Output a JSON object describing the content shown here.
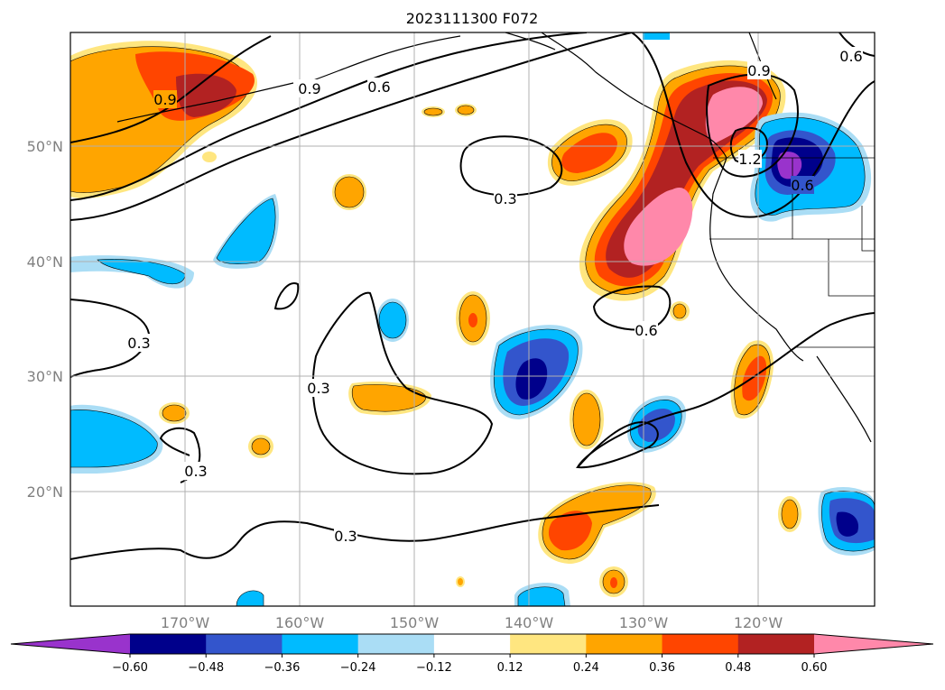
{
  "title": "2023111300 F072",
  "map": {
    "lat_ticks": [
      "50°N",
      "40°N",
      "30°N",
      "20°N"
    ],
    "lon_ticks": [
      "170°W",
      "160°W",
      "150°W",
      "140°W",
      "130°W",
      "120°W"
    ],
    "contour_labels": [
      "0.9",
      "0.9",
      "0.6",
      "0.3",
      "0.3",
      "0.3",
      "0.3",
      "0.6",
      "0.9",
      "1.2",
      "0.6",
      "0.6",
      "0.3"
    ]
  },
  "colorbar": {
    "tick_labels": [
      "−0.60",
      "−0.48",
      "−0.36",
      "−0.24",
      "−0.12",
      "0.12",
      "0.24",
      "0.36",
      "0.48",
      "0.60"
    ],
    "colors": [
      "#9933cc",
      "#00008b",
      "#3355cc",
      "#00bbff",
      "#aaddf5",
      "#ffffff",
      "#ffe680",
      "#ffa500",
      "#ff4500",
      "#b22222",
      "#ff88aa"
    ]
  }
}
